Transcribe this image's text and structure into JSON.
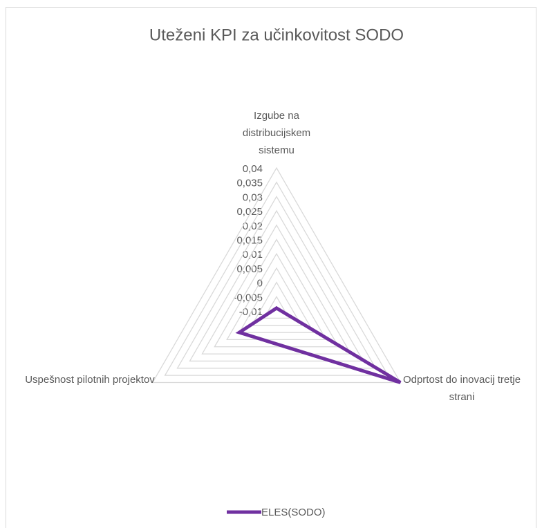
{
  "chart_data": {
    "type": "radar",
    "title": "Uteženi KPI za učinkovitost SODO",
    "categories": [
      "Izgube na distribucijskem sistemu",
      "Odprtost do inovacij tretje strani",
      "Uspešnost pilotnih projektov"
    ],
    "series": [
      {
        "name": "ELES(SODO)",
        "color": "#7030a0",
        "values": [
          -0.009,
          0.04,
          0.005
        ]
      }
    ],
    "ylim": [
      -0.01,
      0.04
    ],
    "yticks": [
      {
        "value": -0.01,
        "label": "-0,01"
      },
      {
        "value": -0.005,
        "label": "-0,005"
      },
      0,
      {
        "value": 0.005,
        "label": "0,005"
      },
      {
        "value": 0.01,
        "label": "0,01"
      },
      {
        "value": 0.015,
        "label": "0,015"
      },
      {
        "value": 0.02,
        "label": "0,02"
      },
      {
        "value": 0.025,
        "label": "0,025"
      },
      {
        "value": 0.03,
        "label": "0,03"
      },
      {
        "value": 0.035,
        "label": "0,035"
      },
      {
        "value": 0.04,
        "label": "0,04"
      }
    ],
    "grid": true,
    "legend": "bottom"
  }
}
